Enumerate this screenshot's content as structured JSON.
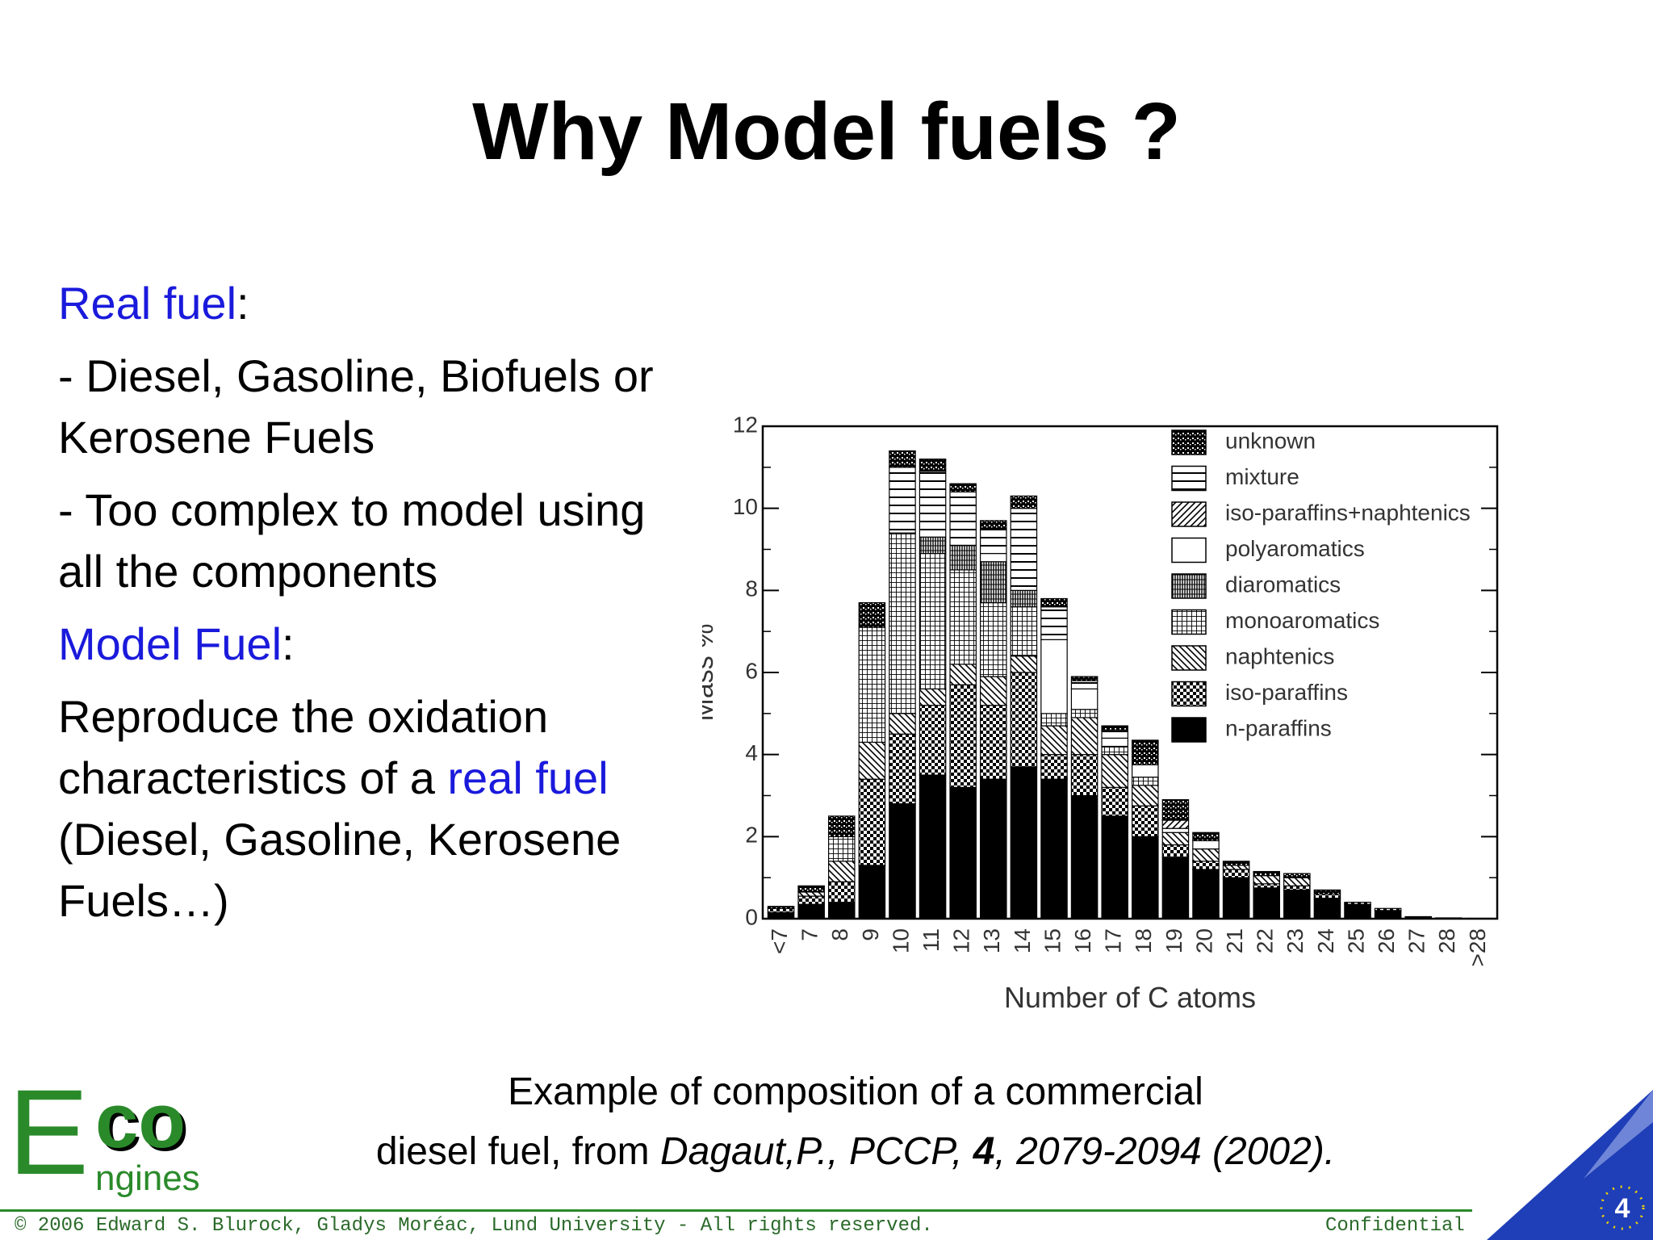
{
  "slide": {
    "title": "Why Model fuels ?",
    "real_fuel_label": "Real fuel",
    "colon1": ":",
    "bullet1": "- Diesel, Gasoline, Biofuels or Kerosene Fuels",
    "bullet2": "- Too complex to model using all the components",
    "model_fuel_label": "Model Fuel",
    "colon2": ":",
    "repro_start": "Reproduce the oxidation characteristics of a ",
    "repro_blue": "real fuel",
    "repro_end": " (Diesel, Gasoline, Kerosene Fuels…)",
    "caption_line1": "Example of composition of a commercial",
    "caption_line2_a": "diesel fuel, from ",
    "caption_line2_b": "Dagaut,P., PCCP, ",
    "caption_line2_c": "4",
    "caption_line2_d": ", 2079-2094 (2002).",
    "logo_e": "E",
    "logo_co": "co",
    "logo_ngines": "ngines",
    "footer": "© 2006 Edward S. Blurock, Gladys Moréac, Lund University - All rights reserved.",
    "confidential": "Confidential",
    "page_number": "4",
    "colors": {
      "blue": "#1a1adc",
      "green": "#2a8a2a",
      "corner_blue": "#1f3fb8"
    }
  },
  "chart_data": {
    "type": "bar",
    "stacked": true,
    "xlabel": "Number of C atoms",
    "ylabel": "Mass %",
    "ylim": [
      0,
      12
    ],
    "yticks": [
      0,
      2,
      4,
      6,
      8,
      10,
      12
    ],
    "categories": [
      "<7",
      "7",
      "8",
      "9",
      "10",
      "11",
      "12",
      "13",
      "14",
      "15",
      "16",
      "17",
      "18",
      "19",
      "20",
      "21",
      "22",
      "23",
      "24",
      "25",
      "26",
      "27",
      "28",
      ">28"
    ],
    "legend_position": "top-right",
    "series": [
      {
        "name": "n-paraffins",
        "pattern": "solid",
        "values": [
          0.15,
          0.35,
          0.4,
          1.3,
          2.8,
          3.5,
          3.2,
          3.4,
          3.7,
          3.4,
          3.0,
          2.5,
          2.0,
          1.5,
          1.2,
          1.0,
          0.75,
          0.7,
          0.5,
          0.35,
          0.2,
          0.05,
          0.02,
          0.01
        ]
      },
      {
        "name": "iso-paraffins",
        "pattern": "checker",
        "values": [
          0.1,
          0.2,
          0.5,
          2.1,
          1.7,
          1.7,
          2.5,
          1.8,
          2.3,
          0.6,
          1.0,
          0.7,
          0.75,
          0.3,
          0.2,
          0.2,
          0.1,
          0.1,
          0.1,
          0.05,
          0.05,
          0,
          0,
          0
        ]
      },
      {
        "name": "naphtenics",
        "pattern": "backdiag",
        "values": [
          0.0,
          0.1,
          0.5,
          0.9,
          0.5,
          0.4,
          0.5,
          0.7,
          0.4,
          0.7,
          0.9,
          0.8,
          0.5,
          0.3,
          0.3,
          0.1,
          0.2,
          0.2,
          0,
          0,
          0,
          0,
          0,
          0
        ]
      },
      {
        "name": "monoaromatics",
        "pattern": "grid",
        "values": [
          0.0,
          0.0,
          0.6,
          2.8,
          4.4,
          3.3,
          2.3,
          1.8,
          1.2,
          0.3,
          0.2,
          0.2,
          0.2,
          0,
          0,
          0,
          0,
          0,
          0,
          0,
          0,
          0,
          0,
          0
        ]
      },
      {
        "name": "diaromatics",
        "pattern": "vertdot",
        "values": [
          0.0,
          0.0,
          0.0,
          0,
          0,
          0.4,
          0.6,
          1.0,
          0.4,
          0,
          0,
          0,
          0,
          0,
          0,
          0,
          0,
          0,
          0,
          0,
          0,
          0,
          0,
          0
        ]
      },
      {
        "name": "polyaromatics",
        "pattern": "blank",
        "values": [
          0,
          0,
          0,
          0,
          0,
          0,
          0,
          0.2,
          0,
          1.8,
          0.5,
          0.2,
          0.3,
          0.1,
          0.2,
          0,
          0,
          0,
          0,
          0,
          0,
          0,
          0,
          0
        ]
      },
      {
        "name": "iso-paraffins+naphtenics",
        "pattern": "fwddiag",
        "values": [
          0,
          0,
          0,
          0,
          0,
          0,
          0,
          0,
          0,
          0,
          0,
          0,
          0,
          0.2,
          0,
          0,
          0,
          0,
          0,
          0,
          0,
          0,
          0,
          0
        ]
      },
      {
        "name": "mixture",
        "pattern": "hlines",
        "values": [
          0,
          0,
          0,
          0,
          1.6,
          1.6,
          1.3,
          0.6,
          2.0,
          0.8,
          0.2,
          0.2,
          0,
          0,
          0,
          0,
          0,
          0,
          0,
          0,
          0,
          0,
          0,
          0
        ]
      },
      {
        "name": "unknown",
        "pattern": "speckle",
        "values": [
          0.05,
          0.15,
          0.5,
          0.6,
          0.4,
          0.3,
          0.2,
          0.2,
          0.3,
          0.2,
          0.1,
          0.1,
          0.6,
          0.5,
          0.2,
          0.1,
          0.1,
          0.1,
          0.1,
          0,
          0,
          0,
          0,
          0
        ]
      }
    ]
  }
}
